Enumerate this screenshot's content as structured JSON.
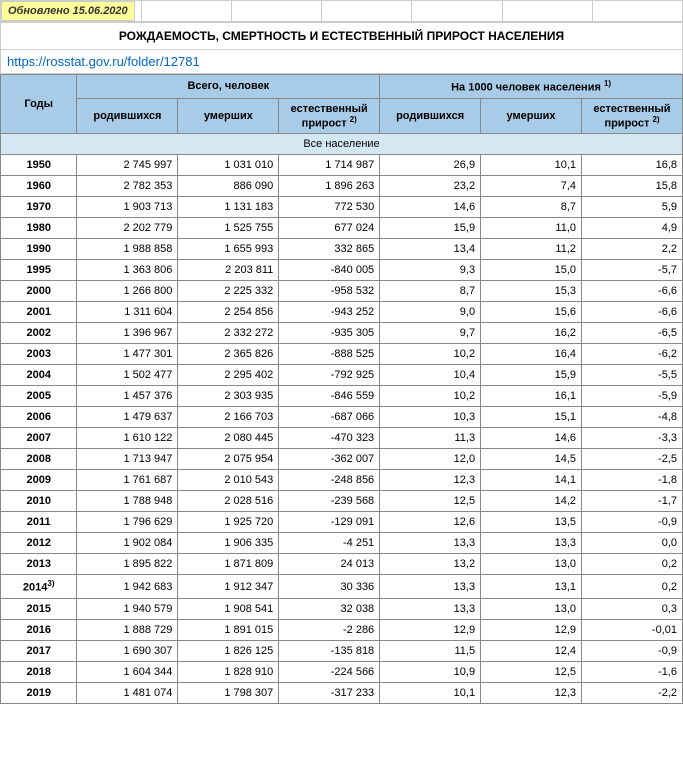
{
  "updated_label": "Обновлено 15.06.2020",
  "title": "РОЖДАЕМОСТЬ, СМЕРТНОСТЬ И ЕСТЕСТВЕННЫЙ ПРИРОСТ НАСЕЛЕНИЯ",
  "source_link": "https://rosstat.gov.ru/folder/12781",
  "header": {
    "years": "Годы",
    "total_people": "Всего, человек",
    "per_1000": "На 1000 человек населения",
    "born": "родившихся",
    "died": "умерших",
    "natural_increase": "естественный прирост",
    "sup1": "1)",
    "sup2": "2)"
  },
  "section_label": "Все население",
  "rows": [
    {
      "year": "1950",
      "born": "2 745 997",
      "died": "1 031 010",
      "inc": "1 714 987",
      "b1000": "26,9",
      "d1000": "10,1",
      "i1000": "16,8"
    },
    {
      "year": "1960",
      "born": "2 782 353",
      "died": "886 090",
      "inc": "1 896 263",
      "b1000": "23,2",
      "d1000": "7,4",
      "i1000": "15,8"
    },
    {
      "year": "1970",
      "born": "1 903 713",
      "died": "1 131 183",
      "inc": "772 530",
      "b1000": "14,6",
      "d1000": "8,7",
      "i1000": "5,9"
    },
    {
      "year": "1980",
      "born": "2 202 779",
      "died": "1 525 755",
      "inc": "677 024",
      "b1000": "15,9",
      "d1000": "11,0",
      "i1000": "4,9"
    },
    {
      "year": "1990",
      "born": "1 988 858",
      "died": "1 655 993",
      "inc": "332 865",
      "b1000": "13,4",
      "d1000": "11,2",
      "i1000": "2,2"
    },
    {
      "year": "1995",
      "born": "1 363 806",
      "died": "2 203 811",
      "inc": "-840 005",
      "b1000": "9,3",
      "d1000": "15,0",
      "i1000": "-5,7"
    },
    {
      "year": "2000",
      "born": "1 266 800",
      "died": "2 225 332",
      "inc": "-958 532",
      "b1000": "8,7",
      "d1000": "15,3",
      "i1000": "-6,6"
    },
    {
      "year": "2001",
      "born": "1 311 604",
      "died": "2 254 856",
      "inc": "-943 252",
      "b1000": "9,0",
      "d1000": "15,6",
      "i1000": "-6,6"
    },
    {
      "year": "2002",
      "born": "1 396 967",
      "died": "2 332 272",
      "inc": "-935 305",
      "b1000": "9,7",
      "d1000": "16,2",
      "i1000": "-6,5"
    },
    {
      "year": "2003",
      "born": "1 477 301",
      "died": "2 365 826",
      "inc": "-888 525",
      "b1000": "10,2",
      "d1000": "16,4",
      "i1000": "-6,2"
    },
    {
      "year": "2004",
      "born": "1 502 477",
      "died": "2 295 402",
      "inc": "-792 925",
      "b1000": "10,4",
      "d1000": "15,9",
      "i1000": "-5,5"
    },
    {
      "year": "2005",
      "born": "1 457 376",
      "died": "2 303 935",
      "inc": "-846 559",
      "b1000": "10,2",
      "d1000": "16,1",
      "i1000": "-5,9"
    },
    {
      "year": "2006",
      "born": "1 479 637",
      "died": "2 166 703",
      "inc": "-687 066",
      "b1000": "10,3",
      "d1000": "15,1",
      "i1000": "-4,8"
    },
    {
      "year": "2007",
      "born": "1 610 122",
      "died": "2 080 445",
      "inc": "-470 323",
      "b1000": "11,3",
      "d1000": "14,6",
      "i1000": "-3,3"
    },
    {
      "year": "2008",
      "born": "1 713 947",
      "died": "2 075 954",
      "inc": "-362 007",
      "b1000": "12,0",
      "d1000": "14,5",
      "i1000": "-2,5"
    },
    {
      "year": "2009",
      "born": "1 761 687",
      "died": "2 010 543",
      "inc": "-248 856",
      "b1000": "12,3",
      "d1000": "14,1",
      "i1000": "-1,8"
    },
    {
      "year": "2010",
      "born": "1 788 948",
      "died": "2 028 516",
      "inc": "-239 568",
      "b1000": "12,5",
      "d1000": "14,2",
      "i1000": "-1,7"
    },
    {
      "year": "2011",
      "born": "1 796 629",
      "died": "1 925 720",
      "inc": "-129 091",
      "b1000": "12,6",
      "d1000": "13,5",
      "i1000": "-0,9"
    },
    {
      "year": "2012",
      "born": "1 902 084",
      "died": "1 906 335",
      "inc": "-4 251",
      "b1000": "13,3",
      "d1000": "13,3",
      "i1000": "0,0"
    },
    {
      "year": "2013",
      "born": "1 895 822",
      "died": "1 871 809",
      "inc": "24 013",
      "b1000": "13,2",
      "d1000": "13,0",
      "i1000": "0,2"
    },
    {
      "year": "2014",
      "sup": "3)",
      "born": "1 942 683",
      "died": "1 912 347",
      "inc": "30 336",
      "b1000": "13,3",
      "d1000": "13,1",
      "i1000": "0,2"
    },
    {
      "year": "2015",
      "born": "1 940 579",
      "died": "1 908 541",
      "inc": "32 038",
      "b1000": "13,3",
      "d1000": "13,0",
      "i1000": "0,3"
    },
    {
      "year": "2016",
      "born": "1 888 729",
      "died": "1 891 015",
      "inc": "-2 286",
      "b1000": "12,9",
      "d1000": "12,9",
      "i1000": "-0,01"
    },
    {
      "year": "2017",
      "born": "1 690 307",
      "died": "1 826 125",
      "inc": "-135 818",
      "b1000": "11,5",
      "d1000": "12,4",
      "i1000": "-0,9"
    },
    {
      "year": "2018",
      "born": "1 604 344",
      "died": "1 828 910",
      "inc": "-224 566",
      "b1000": "10,9",
      "d1000": "12,5",
      "i1000": "-1,6"
    },
    {
      "year": "2019",
      "born": "1 481 074",
      "died": "1 798 307",
      "inc": "-317 233",
      "b1000": "10,1",
      "d1000": "12,3",
      "i1000": "-2,2"
    }
  ],
  "colors": {
    "header_bg": "#a8cce8",
    "section_bg": "#d4e8f4",
    "updated_bg": "#ffff99",
    "border": "#888888",
    "link": "#0066cc"
  }
}
